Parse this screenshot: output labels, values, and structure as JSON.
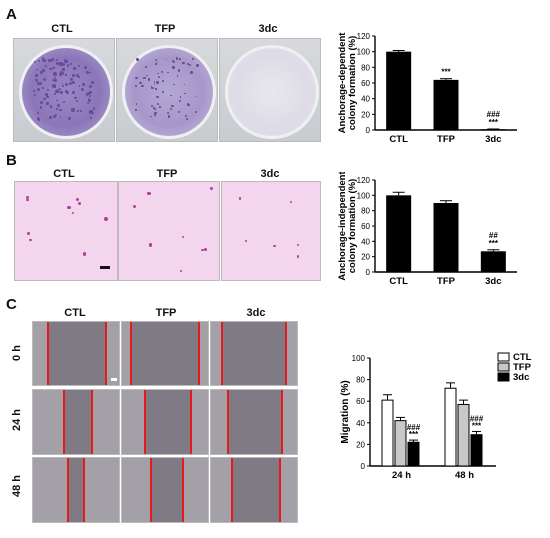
{
  "panel_a": {
    "letter": "A",
    "columns": [
      "CTL",
      "TFP",
      "3dc"
    ]
  },
  "panel_b": {
    "letter": "B",
    "columns": [
      "CTL",
      "TFP",
      "3dc"
    ]
  },
  "panel_c": {
    "letter": "C",
    "columns": [
      "CTL",
      "TFP",
      "3dc"
    ],
    "rows": [
      "0 h",
      "24 h",
      "48 h"
    ]
  },
  "colors": {
    "bar_dark": "#000000",
    "bar_gray": "#c8c8c8",
    "bar_white": "#ffffff",
    "scratch_line": "#e8191b",
    "stain": "#6a4a9a"
  },
  "chart_data": [
    {
      "type": "bar",
      "categories": [
        "CTL",
        "TFP",
        "3dc"
      ],
      "values": [
        100,
        64,
        1
      ],
      "errors": [
        1.5,
        1.5,
        0.3
      ],
      "annotations": [
        [],
        [
          "***"
        ],
        [
          "###",
          "***"
        ]
      ],
      "ylabel": "Anchorage-dependent colony formation (%)",
      "ylim": [
        0,
        120
      ],
      "yticks": [
        0,
        20,
        40,
        60,
        80,
        100,
        120
      ]
    },
    {
      "type": "bar",
      "categories": [
        "CTL",
        "TFP",
        "3dc"
      ],
      "values": [
        100,
        90,
        27
      ],
      "errors": [
        4,
        3,
        2
      ],
      "annotations": [
        [],
        [],
        [
          "##",
          "***"
        ]
      ],
      "ylabel": "Anchorage-independent colony formation (%)",
      "ylim": [
        0,
        120
      ],
      "yticks": [
        0,
        20,
        40,
        60,
        80,
        100,
        120
      ]
    },
    {
      "type": "bar",
      "categories": [
        "24 h",
        "48 h"
      ],
      "series": [
        {
          "name": "CTL",
          "values": [
            61,
            72
          ],
          "errors": [
            5,
            5
          ]
        },
        {
          "name": "TFP",
          "values": [
            42,
            57
          ],
          "errors": [
            3,
            4
          ]
        },
        {
          "name": "3dc",
          "values": [
            22,
            29
          ],
          "errors": [
            2,
            3
          ]
        }
      ],
      "annotations": [
        "###",
        "***"
      ],
      "ylabel": "Migration (%)",
      "ylim": [
        0,
        100
      ],
      "yticks": [
        0,
        20,
        40,
        60,
        80,
        100
      ],
      "legend": "top-right"
    }
  ]
}
